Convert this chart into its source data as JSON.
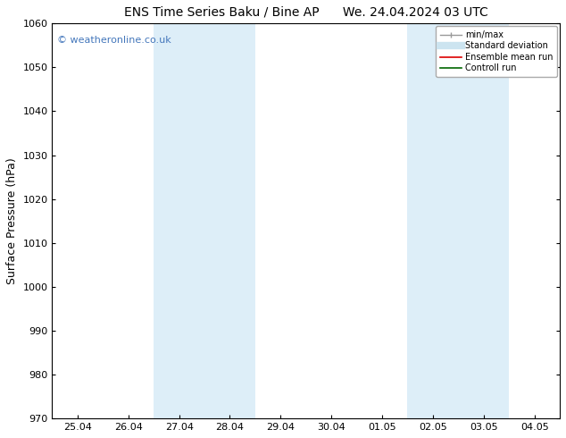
{
  "title_left": "ENS Time Series Baku / Bine AP",
  "title_right": "We. 24.04.2024 03 UTC",
  "ylabel": "Surface Pressure (hPa)",
  "ylim": [
    970,
    1060
  ],
  "yticks": [
    970,
    980,
    990,
    1000,
    1010,
    1020,
    1030,
    1040,
    1050,
    1060
  ],
  "x_labels": [
    "25.04",
    "26.04",
    "27.04",
    "28.04",
    "29.04",
    "30.04",
    "01.05",
    "02.05",
    "03.05",
    "04.05"
  ],
  "x_values": [
    0,
    1,
    2,
    3,
    4,
    5,
    6,
    7,
    8,
    9
  ],
  "shaded_regions": [
    {
      "xmin": 1.5,
      "xmax": 3.5,
      "color": "#ddeef8"
    },
    {
      "xmin": 6.5,
      "xmax": 8.5,
      "color": "#ddeef8"
    }
  ],
  "watermark_text": "© weatheronline.co.uk",
  "watermark_color": "#4477bb",
  "bg_color": "#ffffff",
  "plot_bg_color": "#ffffff",
  "border_color": "#000000",
  "title_fontsize": 10,
  "ylabel_fontsize": 9,
  "tick_fontsize": 8,
  "watermark_fontsize": 8,
  "legend_fontsize": 7,
  "legend_label_gray": "#999999",
  "legend_label_lightblue": "#cce4f0",
  "legend_label_red": "#dd0000",
  "legend_label_green": "#006600"
}
